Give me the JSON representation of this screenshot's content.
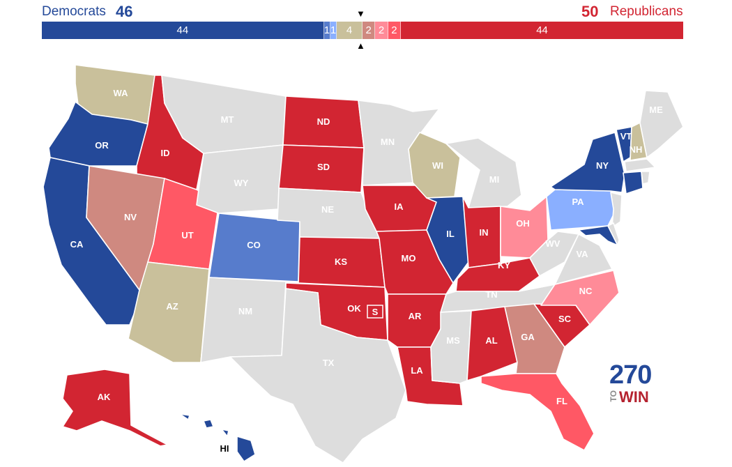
{
  "header": {
    "dem_label": "Democrats",
    "dem_total": "46",
    "rep_total": "50",
    "rep_label": "Republicans"
  },
  "bar": [
    {
      "label": "44",
      "value": 44,
      "color": "#244999"
    },
    {
      "label": "1",
      "value": 1,
      "color": "#577ccc"
    },
    {
      "label": "1",
      "value": 1,
      "color": "#8aafff"
    },
    {
      "label": "4",
      "value": 4,
      "color": "#c9c09b"
    },
    {
      "label": "2",
      "value": 2,
      "color": "#cf8980"
    },
    {
      "label": "2",
      "value": 2,
      "color": "#ff8b98"
    },
    {
      "label": "2",
      "value": 2,
      "color": "#ff5865"
    },
    {
      "label": "44",
      "value": 44,
      "color": "#d22532"
    }
  ],
  "colors": {
    "safe_d": "#244999",
    "likely_d": "#577ccc",
    "lean_d": "#8aafff",
    "tossup": "#c9c09b",
    "tilt_r": "#cf8980",
    "lean_r": "#ff8b98",
    "likely_r": "#ff5865",
    "safe_r": "#d22532",
    "no_race": "#dddddd"
  },
  "states": [
    {
      "abbr": "WA",
      "rating": "tossup"
    },
    {
      "abbr": "OR",
      "rating": "safe_d"
    },
    {
      "abbr": "CA",
      "rating": "safe_d"
    },
    {
      "abbr": "ID",
      "rating": "safe_r"
    },
    {
      "abbr": "NV",
      "rating": "tilt_r"
    },
    {
      "abbr": "UT",
      "rating": "likely_r"
    },
    {
      "abbr": "AZ",
      "rating": "tossup"
    },
    {
      "abbr": "MT",
      "rating": "no_race"
    },
    {
      "abbr": "WY",
      "rating": "no_race"
    },
    {
      "abbr": "CO",
      "rating": "likely_d"
    },
    {
      "abbr": "NM",
      "rating": "no_race"
    },
    {
      "abbr": "ND",
      "rating": "safe_r"
    },
    {
      "abbr": "SD",
      "rating": "safe_r"
    },
    {
      "abbr": "NE",
      "rating": "no_race"
    },
    {
      "abbr": "KS",
      "rating": "safe_r"
    },
    {
      "abbr": "OK",
      "rating": "safe_r"
    },
    {
      "abbr": "TX",
      "rating": "no_race"
    },
    {
      "abbr": "MN",
      "rating": "no_race"
    },
    {
      "abbr": "IA",
      "rating": "safe_r"
    },
    {
      "abbr": "MO",
      "rating": "safe_r"
    },
    {
      "abbr": "AR",
      "rating": "safe_r"
    },
    {
      "abbr": "LA",
      "rating": "safe_r"
    },
    {
      "abbr": "WI",
      "rating": "tossup"
    },
    {
      "abbr": "IL",
      "rating": "safe_d"
    },
    {
      "abbr": "MI",
      "rating": "no_race"
    },
    {
      "abbr": "IN",
      "rating": "safe_r"
    },
    {
      "abbr": "OH",
      "rating": "lean_r"
    },
    {
      "abbr": "KY",
      "rating": "safe_r"
    },
    {
      "abbr": "TN",
      "rating": "no_race"
    },
    {
      "abbr": "MS",
      "rating": "no_race"
    },
    {
      "abbr": "AL",
      "rating": "safe_r"
    },
    {
      "abbr": "GA",
      "rating": "tilt_r"
    },
    {
      "abbr": "FL",
      "rating": "likely_r"
    },
    {
      "abbr": "SC",
      "rating": "safe_r"
    },
    {
      "abbr": "NC",
      "rating": "lean_r"
    },
    {
      "abbr": "VA",
      "rating": "no_race"
    },
    {
      "abbr": "WV",
      "rating": "no_race"
    },
    {
      "abbr": "PA",
      "rating": "lean_d"
    },
    {
      "abbr": "NY",
      "rating": "safe_d"
    },
    {
      "abbr": "VT",
      "rating": "safe_d"
    },
    {
      "abbr": "NH",
      "rating": "tossup"
    },
    {
      "abbr": "ME",
      "rating": "no_race"
    },
    {
      "abbr": "MD",
      "rating": "safe_d"
    },
    {
      "abbr": "CT",
      "rating": "safe_d"
    },
    {
      "abbr": "AK",
      "rating": "safe_r"
    },
    {
      "abbr": "HI",
      "rating": "safe_d"
    }
  ],
  "special_election_marker": "S",
  "logo": {
    "number": "270",
    "to": "TO",
    "win": "WIN"
  }
}
